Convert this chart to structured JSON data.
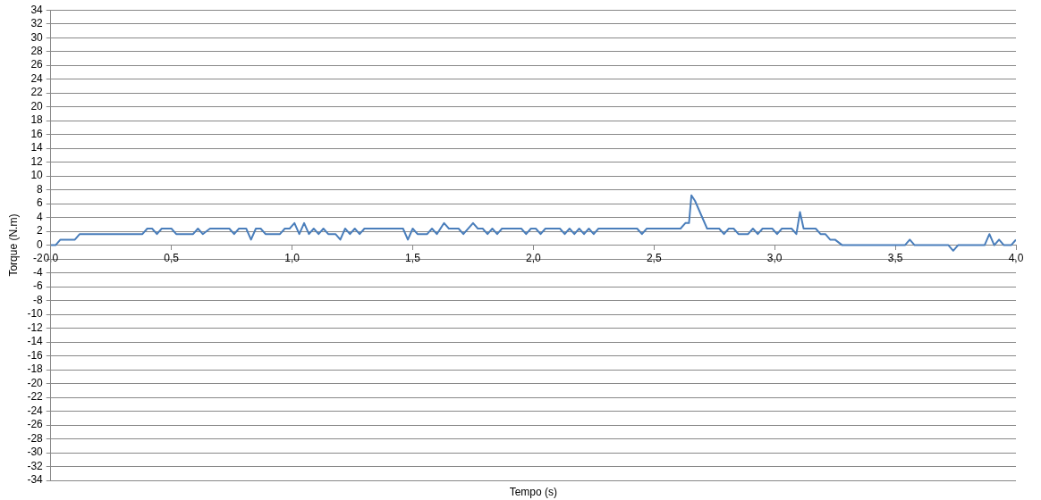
{
  "chart_data": {
    "type": "line",
    "xlabel": "Tempo (s)",
    "ylabel": "Torque (N.m)",
    "xlim": [
      0,
      4
    ],
    "xticks": [
      {
        "value": 0,
        "label": "0,0"
      },
      {
        "value": 0.5,
        "label": "0,5"
      },
      {
        "value": 1,
        "label": "1,0"
      },
      {
        "value": 1.5,
        "label": "1,5"
      },
      {
        "value": 2,
        "label": "2,0"
      },
      {
        "value": 2.5,
        "label": "2,5"
      },
      {
        "value": 3,
        "label": "3,0"
      },
      {
        "value": 3.5,
        "label": "3,5"
      },
      {
        "value": 4,
        "label": "4,0"
      }
    ],
    "ylim": [
      -34,
      34
    ],
    "yticks": [
      -34,
      -32,
      -30,
      -28,
      -26,
      -24,
      -22,
      -20,
      -18,
      -16,
      -14,
      -12,
      -10,
      -8,
      -6,
      -4,
      -2,
      0,
      2,
      4,
      6,
      8,
      10,
      12,
      14,
      16,
      18,
      20,
      22,
      24,
      26,
      28,
      30,
      32,
      34
    ],
    "grid": "y",
    "legend": false,
    "marker": "none",
    "line_style": "solid",
    "series": [
      {
        "color": "#4a7ebb",
        "x": [
          0,
          0.02,
          0.04,
          0.1,
          0.12,
          0.38,
          0.4,
          0.42,
          0.44,
          0.46,
          0.5,
          0.52,
          0.59,
          0.61,
          0.63,
          0.66,
          0.74,
          0.76,
          0.78,
          0.81,
          0.83,
          0.85,
          0.87,
          0.89,
          0.95,
          0.97,
          0.99,
          1.01,
          1.03,
          1.05,
          1.07,
          1.09,
          1.11,
          1.13,
          1.15,
          1.18,
          1.2,
          1.22,
          1.24,
          1.26,
          1.28,
          1.3,
          1.46,
          1.48,
          1.5,
          1.52,
          1.56,
          1.58,
          1.6,
          1.63,
          1.65,
          1.69,
          1.71,
          1.75,
          1.77,
          1.79,
          1.81,
          1.83,
          1.85,
          1.87,
          1.95,
          1.97,
          1.99,
          2.01,
          2.03,
          2.05,
          2.11,
          2.13,
          2.15,
          2.17,
          2.19,
          2.21,
          2.23,
          2.25,
          2.27,
          2.43,
          2.45,
          2.47,
          2.61,
          2.63,
          2.645,
          2.655,
          2.67,
          2.72,
          2.77,
          2.79,
          2.81,
          2.83,
          2.85,
          2.89,
          2.91,
          2.93,
          2.95,
          2.99,
          3.01,
          3.03,
          3.07,
          3.09,
          3.105,
          3.12,
          3.17,
          3.19,
          3.21,
          3.23,
          3.25,
          3.28,
          3.54,
          3.56,
          3.58,
          3.72,
          3.74,
          3.76,
          3.87,
          3.89,
          3.91,
          3.93,
          3.95,
          3.98,
          4.0
        ],
        "values": [
          0,
          0,
          0.8,
          0.8,
          1.6,
          1.6,
          2.4,
          2.4,
          1.6,
          2.4,
          2.4,
          1.6,
          1.6,
          2.4,
          1.6,
          2.4,
          2.4,
          1.6,
          2.4,
          2.4,
          0.8,
          2.4,
          2.4,
          1.6,
          1.6,
          2.4,
          2.4,
          3.2,
          1.6,
          3.2,
          1.6,
          2.4,
          1.6,
          2.4,
          1.6,
          1.6,
          0.8,
          2.4,
          1.6,
          2.4,
          1.6,
          2.4,
          2.4,
          0.8,
          2.4,
          1.6,
          1.6,
          2.4,
          1.6,
          3.2,
          2.4,
          2.4,
          1.6,
          3.2,
          2.4,
          2.4,
          1.6,
          2.4,
          1.6,
          2.4,
          2.4,
          1.6,
          2.4,
          2.4,
          1.6,
          2.4,
          2.4,
          1.6,
          2.4,
          1.6,
          2.4,
          1.6,
          2.4,
          1.6,
          2.4,
          2.4,
          1.6,
          2.4,
          2.4,
          3.2,
          3.2,
          7.2,
          6.4,
          2.4,
          2.4,
          1.6,
          2.4,
          2.4,
          1.6,
          1.6,
          2.4,
          1.6,
          2.4,
          2.4,
          1.6,
          2.4,
          2.4,
          1.6,
          4.8,
          2.4,
          2.4,
          1.6,
          1.6,
          0.8,
          0.8,
          0,
          0,
          0.8,
          0,
          0,
          -0.8,
          0,
          0,
          1.6,
          0,
          0.8,
          0,
          0,
          0.8
        ]
      }
    ]
  }
}
